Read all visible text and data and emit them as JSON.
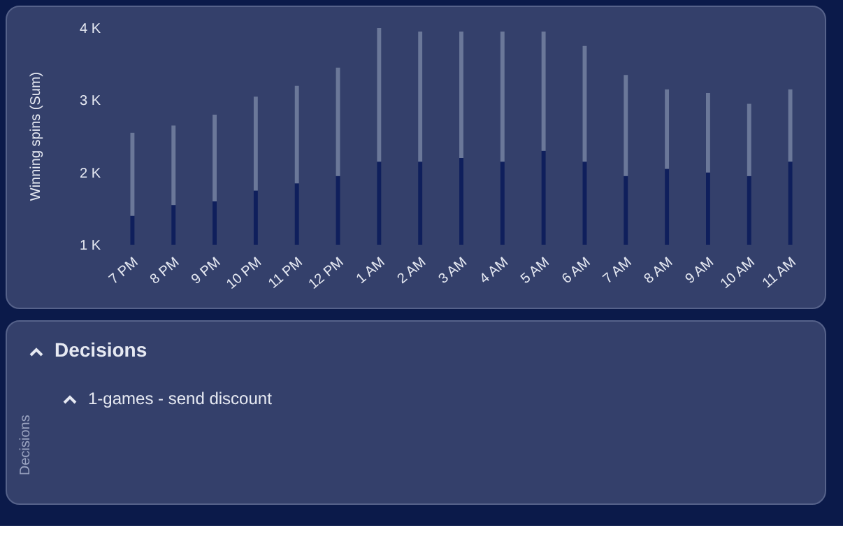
{
  "chart_data": [
    {
      "type": "bar",
      "stacked": true,
      "ylabel": "Winning spins (Sum)",
      "categories": [
        "7 PM",
        "8 PM",
        "9 PM",
        "10 PM",
        "11 PM",
        "12 PM",
        "1 AM",
        "2 AM",
        "3 AM",
        "4 AM",
        "5 AM",
        "6 AM",
        "7 AM",
        "8 AM",
        "9 AM",
        "10 AM",
        "11 AM"
      ],
      "series": [
        {
          "color": "#0f1f5c",
          "values": [
            1400,
            1550,
            1600,
            1750,
            1850,
            1950,
            2150,
            2150,
            2200,
            2150,
            2300,
            2150,
            1950,
            2050,
            2000,
            1950,
            2150
          ]
        },
        {
          "color": "#6b7899",
          "values": [
            1150,
            1100,
            1200,
            1300,
            1350,
            1500,
            1850,
            1800,
            1750,
            1800,
            1650,
            1600,
            1400,
            1100,
            1100,
            1000,
            1000
          ]
        }
      ],
      "ylim": [
        1000,
        4000
      ],
      "yticks": [
        {
          "value": 1000,
          "label": "1 K"
        },
        {
          "value": 2000,
          "label": "2 K"
        },
        {
          "value": 3000,
          "label": "3 K"
        },
        {
          "value": 4000,
          "label": "4 K"
        }
      ],
      "grid": false,
      "legend": false
    },
    {
      "type": "other",
      "title": "Decisions",
      "subtitle": "1-games - send discount",
      "ylabel": "Decisions"
    }
  ]
}
